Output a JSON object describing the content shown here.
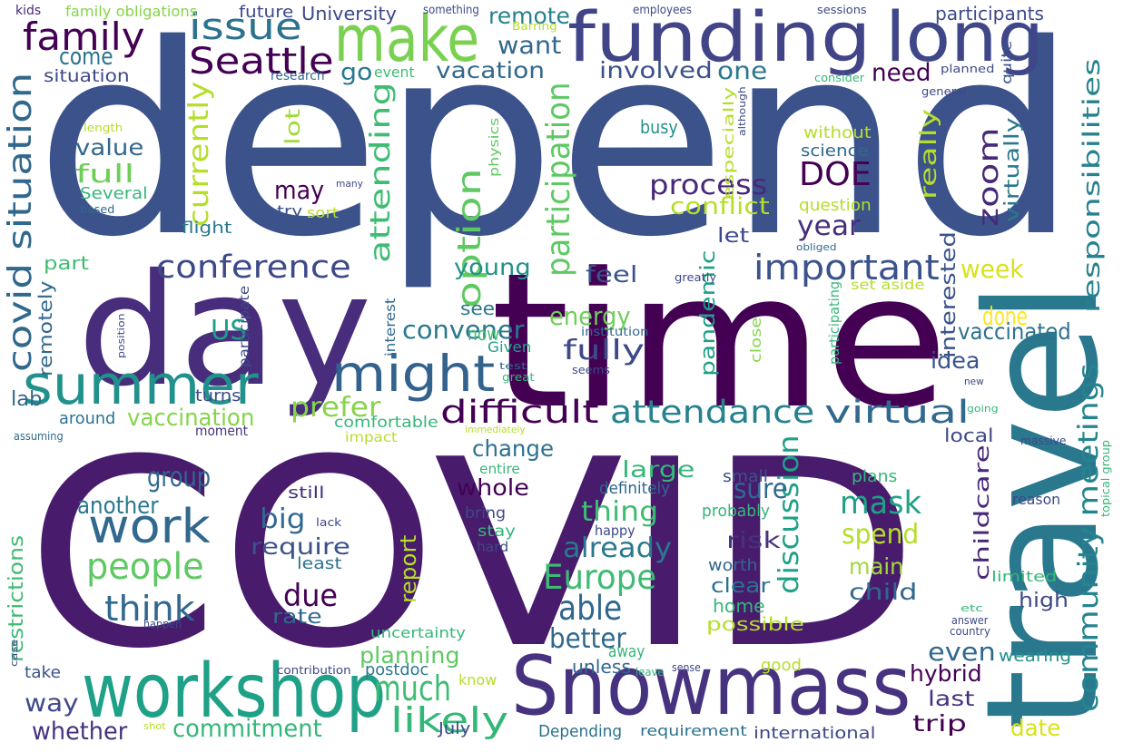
{
  "cloud": {
    "background": "#ffffff",
    "palette": [
      "#440154",
      "#482878",
      "#3e4989",
      "#31688e",
      "#26828e",
      "#1f9e89",
      "#35b779",
      "#6ece58",
      "#b5de2b",
      "#fde725"
    ],
    "words": [
      {
        "text": "depend",
        "color": "#3b528b"
      },
      {
        "text": "COVID",
        "color": "#481b6d"
      },
      {
        "text": "time",
        "color": "#440154"
      },
      {
        "text": "travel",
        "color": "#2a788e"
      },
      {
        "text": "day",
        "color": "#472d7b"
      },
      {
        "text": "funding",
        "color": "#414487"
      },
      {
        "text": "long",
        "color": "#3f4788"
      },
      {
        "text": "make",
        "color": "#7ad151"
      },
      {
        "text": "Snowmass",
        "color": "#46327e"
      },
      {
        "text": "workshop",
        "color": "#1fa187"
      },
      {
        "text": "summer",
        "color": "#21918c"
      },
      {
        "text": "might",
        "color": "#33638d"
      },
      {
        "text": "work",
        "color": "#31688e"
      },
      {
        "text": "family",
        "color": "#440154"
      },
      {
        "text": "issue",
        "color": "#2c728e"
      },
      {
        "text": "Seattle",
        "color": "#440154"
      },
      {
        "text": "covid situation",
        "color": "#31688e"
      },
      {
        "text": "important",
        "color": "#3b528b"
      },
      {
        "text": "conference",
        "color": "#3e4989"
      },
      {
        "text": "attending",
        "color": "#3fbc73"
      },
      {
        "text": "participation",
        "color": "#5ec962"
      },
      {
        "text": "currently",
        "color": "#b5de2b"
      },
      {
        "text": "option",
        "color": "#5ec962"
      },
      {
        "text": "attendance",
        "color": "#26828e"
      },
      {
        "text": "difficult",
        "color": "#440154"
      },
      {
        "text": "virtual",
        "color": "#31688e"
      },
      {
        "text": "people",
        "color": "#5ec962"
      },
      {
        "text": "think",
        "color": "#31688e"
      },
      {
        "text": "Europe",
        "color": "#3fbc73"
      },
      {
        "text": "likely",
        "color": "#35b779"
      },
      {
        "text": "much",
        "color": "#3fbc73"
      },
      {
        "text": "able",
        "color": "#31688e"
      },
      {
        "text": "community meetings",
        "color": "#25858e"
      },
      {
        "text": "responsibilities",
        "color": "#26828e"
      },
      {
        "text": "discussion",
        "color": "#1fa187"
      },
      {
        "text": "mask",
        "color": "#1fa187"
      },
      {
        "text": "zoom",
        "color": "#482878"
      },
      {
        "text": "DOE",
        "color": "#440154"
      },
      {
        "text": "process",
        "color": "#482878"
      },
      {
        "text": "fully",
        "color": "#3e4989"
      },
      {
        "text": "energy",
        "color": "#6ece58"
      },
      {
        "text": "convener",
        "color": "#2a788e"
      },
      {
        "text": "US",
        "color": "#1f9e89"
      },
      {
        "text": "prefer",
        "color": "#86d549"
      },
      {
        "text": "vaccination",
        "color": "#86d549"
      },
      {
        "text": "due",
        "color": "#440154"
      },
      {
        "text": "big",
        "color": "#31688e"
      },
      {
        "text": "group",
        "color": "#31688e"
      },
      {
        "text": "another",
        "color": "#2a788e"
      },
      {
        "text": "require",
        "color": "#3b528b"
      },
      {
        "text": "commitment",
        "color": "#35b779"
      },
      {
        "text": "whether",
        "color": "#46327e"
      },
      {
        "text": "way",
        "color": "#3e4989"
      },
      {
        "text": "thing",
        "color": "#3fbc73"
      },
      {
        "text": "already",
        "color": "#2a788e"
      },
      {
        "text": "sure",
        "color": "#31688e"
      },
      {
        "text": "spend",
        "color": "#b5de2b"
      },
      {
        "text": "risk",
        "color": "#46327e"
      },
      {
        "text": "main",
        "color": "#a0da39"
      },
      {
        "text": "child",
        "color": "#31688e"
      },
      {
        "text": "even",
        "color": "#31688e"
      },
      {
        "text": "hybrid",
        "color": "#440154"
      },
      {
        "text": "last",
        "color": "#46327e"
      },
      {
        "text": "trip",
        "color": "#440154"
      },
      {
        "text": "date",
        "color": "#d8e219"
      },
      {
        "text": "year",
        "color": "#472d7b"
      },
      {
        "text": "week",
        "color": "#d8e219"
      },
      {
        "text": "done",
        "color": "#fde725"
      },
      {
        "text": "vaccinated",
        "color": "#2c728e"
      },
      {
        "text": "idea",
        "color": "#3b528b"
      },
      {
        "text": "interested",
        "color": "#3b528b"
      },
      {
        "text": "childcare",
        "color": "#482878"
      },
      {
        "text": "really",
        "color": "#b5de2b"
      },
      {
        "text": "virtually",
        "color": "#2a788e"
      },
      {
        "text": "want",
        "color": "#31688e"
      },
      {
        "text": "vacation",
        "color": "#31688e"
      },
      {
        "text": "involved",
        "color": "#3b528b"
      },
      {
        "text": "one",
        "color": "#2a788e"
      },
      {
        "text": "need",
        "color": "#440154"
      },
      {
        "text": "go",
        "color": "#2a788e"
      },
      {
        "text": "come",
        "color": "#2c728e"
      },
      {
        "text": "situation",
        "color": "#3e4989"
      },
      {
        "text": "value",
        "color": "#31688e"
      },
      {
        "text": "full",
        "color": "#6ece58"
      },
      {
        "text": "Several",
        "color": "#35b779"
      },
      {
        "text": "remote",
        "color": "#26828e"
      },
      {
        "text": "University",
        "color": "#3e4989"
      },
      {
        "text": "participants",
        "color": "#3e4989"
      },
      {
        "text": "future",
        "color": "#3e4989"
      },
      {
        "text": "family obligations",
        "color": "#86d549"
      },
      {
        "text": "kids",
        "color": "#482878"
      },
      {
        "text": "research",
        "color": "#31688e"
      },
      {
        "text": "event",
        "color": "#3fbc73"
      },
      {
        "text": "may",
        "color": "#440154"
      },
      {
        "text": "lot",
        "color": "#a0da39"
      },
      {
        "text": "try",
        "color": "#3b528b"
      },
      {
        "text": "sort",
        "color": "#b5de2b"
      },
      {
        "text": "part",
        "color": "#3fbc73"
      },
      {
        "text": "young",
        "color": "#21918c"
      },
      {
        "text": "feel",
        "color": "#3b528b"
      },
      {
        "text": "see",
        "color": "#2a788e"
      },
      {
        "text": "now",
        "color": "#3fbc73"
      },
      {
        "text": "let",
        "color": "#3e4989"
      },
      {
        "text": "conflict",
        "color": "#b5de2b"
      },
      {
        "text": "pandemic",
        "color": "#1f9e89"
      },
      {
        "text": "lab",
        "color": "#31688e"
      },
      {
        "text": "around",
        "color": "#2c728e"
      },
      {
        "text": "turns",
        "color": "#3e4989"
      },
      {
        "text": "moment",
        "color": "#46327e"
      },
      {
        "text": "comfortable",
        "color": "#35b779"
      },
      {
        "text": "impact",
        "color": "#b5de2b"
      },
      {
        "text": "change",
        "color": "#2c728e"
      },
      {
        "text": "whole",
        "color": "#440154"
      },
      {
        "text": "large",
        "color": "#35b779"
      },
      {
        "text": "definitely",
        "color": "#31688e"
      },
      {
        "text": "small",
        "color": "#3b528b"
      },
      {
        "text": "probably",
        "color": "#35b779"
      },
      {
        "text": "better",
        "color": "#31688e"
      },
      {
        "text": "planning",
        "color": "#5ec962"
      },
      {
        "text": "report",
        "color": "#b5de2b"
      },
      {
        "text": "restrictions",
        "color": "#3fbc73"
      },
      {
        "text": "remotely",
        "color": "#31688e"
      },
      {
        "text": "participate",
        "color": "#3e4989"
      },
      {
        "text": "interest",
        "color": "#31688e"
      },
      {
        "text": "Given",
        "color": "#1f9e89"
      },
      {
        "text": "test",
        "color": "#31688e"
      },
      {
        "text": "great",
        "color": "#35b779"
      },
      {
        "text": "institution",
        "color": "#31688e"
      },
      {
        "text": "seems",
        "color": "#3e4989"
      },
      {
        "text": "close",
        "color": "#86d549"
      },
      {
        "text": "participating",
        "color": "#35b779"
      },
      {
        "text": "set aside",
        "color": "#b5de2b"
      },
      {
        "text": "question",
        "color": "#b5de2b"
      },
      {
        "text": "science",
        "color": "#31688e"
      },
      {
        "text": "without",
        "color": "#b5de2b"
      },
      {
        "text": "busy",
        "color": "#21918c"
      },
      {
        "text": "especially",
        "color": "#b5de2b"
      },
      {
        "text": "physics",
        "color": "#5ec962"
      },
      {
        "text": "although",
        "color": "#3e4989"
      },
      {
        "text": "quite",
        "color": "#3b528b"
      },
      {
        "text": "planned",
        "color": "#3e4989"
      },
      {
        "text": "consider",
        "color": "#35b779"
      },
      {
        "text": "general",
        "color": "#3e4989"
      },
      {
        "text": "sessions",
        "color": "#3e4989"
      },
      {
        "text": "employees",
        "color": "#3e4989"
      },
      {
        "text": "something",
        "color": "#3e4989"
      },
      {
        "text": "Barring",
        "color": "#b5de2b"
      },
      {
        "text": "length",
        "color": "#b5de2b"
      },
      {
        "text": "many",
        "color": "#3e4989"
      },
      {
        "text": "based",
        "color": "#31688e"
      },
      {
        "text": "flight",
        "color": "#2a788e"
      },
      {
        "text": "greatly",
        "color": "#3e4989"
      },
      {
        "text": "position",
        "color": "#3e4989"
      },
      {
        "text": "obliged",
        "color": "#31688e"
      },
      {
        "text": "assuming",
        "color": "#31688e"
      },
      {
        "text": "still",
        "color": "#46327e"
      },
      {
        "text": "bring",
        "color": "#3e4989"
      },
      {
        "text": "stay",
        "color": "#35b779"
      },
      {
        "text": "hard",
        "color": "#3e4989"
      },
      {
        "text": "happy",
        "color": "#3e4989"
      },
      {
        "text": "least",
        "color": "#2c728e"
      },
      {
        "text": "lack",
        "color": "#3e4989"
      },
      {
        "text": "immediately",
        "color": "#b5de2b"
      },
      {
        "text": "entire",
        "color": "#35b779"
      },
      {
        "text": "uncertainty",
        "color": "#35b779"
      },
      {
        "text": "postdoc",
        "color": "#2a788e"
      },
      {
        "text": "know",
        "color": "#b5de2b"
      },
      {
        "text": "unless",
        "color": "#31688e"
      },
      {
        "text": "away",
        "color": "#35b779"
      },
      {
        "text": "leave",
        "color": "#35b779"
      },
      {
        "text": "sense",
        "color": "#3e4989"
      },
      {
        "text": "good",
        "color": "#b5de2b"
      },
      {
        "text": "July",
        "color": "#3e4989"
      },
      {
        "text": "Depending",
        "color": "#2c728e"
      },
      {
        "text": "requirement",
        "color": "#2c728e"
      },
      {
        "text": "international",
        "color": "#3e4989"
      },
      {
        "text": "shot",
        "color": "#b5de2b"
      },
      {
        "text": "contribution",
        "color": "#3e4989"
      },
      {
        "text": "take",
        "color": "#3b528b"
      },
      {
        "text": "happen",
        "color": "#3e4989"
      },
      {
        "text": "case",
        "color": "#3e4989"
      },
      {
        "text": "worth",
        "color": "#31688e"
      },
      {
        "text": "clear",
        "color": "#2c728e"
      },
      {
        "text": "home",
        "color": "#35b779"
      },
      {
        "text": "possible",
        "color": "#b5de2b"
      },
      {
        "text": "rate",
        "color": "#31688e"
      },
      {
        "text": "plans",
        "color": "#35b779"
      },
      {
        "text": "reason",
        "color": "#3e4989"
      },
      {
        "text": "limited",
        "color": "#35b779"
      },
      {
        "text": "high",
        "color": "#3e4989"
      },
      {
        "text": "local",
        "color": "#3e4989"
      },
      {
        "text": "massive",
        "color": "#3e4989"
      },
      {
        "text": "topical group",
        "color": "#35b779"
      },
      {
        "text": "new",
        "color": "#3e4989"
      },
      {
        "text": "going",
        "color": "#35b779"
      },
      {
        "text": "etc",
        "color": "#35b779"
      },
      {
        "text": "answer",
        "color": "#3e4989"
      },
      {
        "text": "country",
        "color": "#3e4989"
      },
      {
        "text": "wearing",
        "color": "#21918c"
      }
    ]
  }
}
